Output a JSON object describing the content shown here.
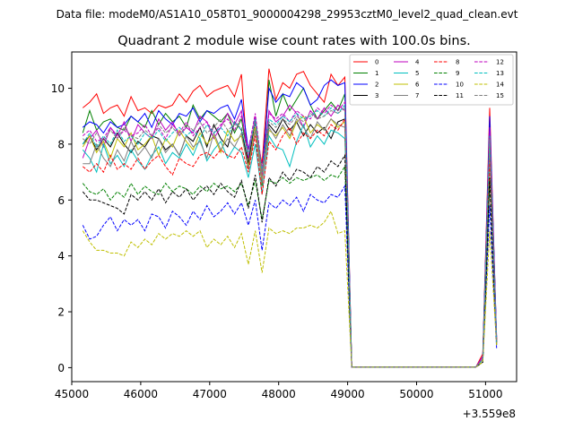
{
  "suptitle": "Data file: modeM0/AS1A10_058T01_9000004298_29953cztM0_level2_quad_clean.evt",
  "chart_data": {
    "type": "line",
    "title": "Quadrant 2 module wise count rates with 100.0s bins.",
    "xlabel": "",
    "ylabel": "",
    "x_offset_label": "+3.559e8",
    "xlim": [
      45000,
      51450
    ],
    "ylim": [
      -0.5,
      11.3
    ],
    "xticks": [
      45000,
      46000,
      47000,
      48000,
      49000,
      50000,
      51000
    ],
    "yticks": [
      0,
      2,
      4,
      6,
      8,
      10
    ],
    "legend": {
      "placement": "top-right",
      "columns": 4
    },
    "bin_note": "x = 45160 + 100*i (offset seconds), 61 bins",
    "series": [
      {
        "name": "0",
        "color": "#ff0000",
        "dash": "solid",
        "values": [
          9.3,
          9.5,
          9.8,
          9.1,
          9.3,
          9.4,
          9.0,
          9.7,
          9.2,
          9.3,
          9.1,
          9.4,
          9.3,
          9.4,
          9.8,
          9.5,
          9.9,
          10.1,
          9.7,
          9.9,
          10.0,
          10.1,
          9.7,
          10.5,
          7.1,
          8.5,
          7.3,
          10.7,
          9.6,
          10.2,
          10.0,
          10.5,
          10.6,
          10.1,
          9.8,
          9.5,
          10.5,
          10.1,
          10.4,
          0.02,
          0.02,
          0.02,
          0.02,
          0.02,
          0.02,
          0.02,
          0.02,
          0.02,
          0.02,
          0.02,
          0.02,
          0.02,
          0.02,
          0.02,
          0.02,
          0.02,
          0.02,
          0.02,
          0.5,
          9.3,
          1.0
        ]
      },
      {
        "name": "1",
        "color": "#008000",
        "dash": "solid",
        "values": [
          8.4,
          9.2,
          8.5,
          8.8,
          8.9,
          8.6,
          8.5,
          9.0,
          8.8,
          8.6,
          9.2,
          8.7,
          9.1,
          8.8,
          9.0,
          8.6,
          9.4,
          8.9,
          9.2,
          9.0,
          8.8,
          9.1,
          8.4,
          8.9,
          7.5,
          8.8,
          6.5,
          10.3,
          9.0,
          9.8,
          9.2,
          9.6,
          10.0,
          9.4,
          8.9,
          9.2,
          9.5,
          9.2,
          9.8,
          0.02,
          0.02,
          0.02,
          0.02,
          0.02,
          0.02,
          0.02,
          0.02,
          0.02,
          0.02,
          0.02,
          0.02,
          0.02,
          0.02,
          0.02,
          0.02,
          0.02,
          0.02,
          0.02,
          0.4,
          8.8,
          1.0
        ]
      },
      {
        "name": "2",
        "color": "#0000ff",
        "dash": "solid",
        "values": [
          8.6,
          8.8,
          8.7,
          8.4,
          8.8,
          8.6,
          8.7,
          9.0,
          8.8,
          9.1,
          8.6,
          9.2,
          8.9,
          8.7,
          9.1,
          9.0,
          9.3,
          8.8,
          9.2,
          9.1,
          9.3,
          9.4,
          8.9,
          9.6,
          7.8,
          8.8,
          7.0,
          10.0,
          9.5,
          9.8,
          9.7,
          10.2,
          10.0,
          9.4,
          9.6,
          10.1,
          10.3,
          10.1,
          10.2,
          0.02,
          0.02,
          0.02,
          0.02,
          0.02,
          0.02,
          0.02,
          0.02,
          0.02,
          0.02,
          0.02,
          0.02,
          0.02,
          0.02,
          0.02,
          0.02,
          0.02,
          0.02,
          0.02,
          0.4,
          9.0,
          1.1
        ]
      },
      {
        "name": "3",
        "color": "#000000",
        "dash": "solid",
        "values": [
          8.0,
          8.3,
          7.8,
          8.2,
          7.9,
          8.4,
          8.0,
          7.7,
          8.1,
          7.9,
          8.3,
          8.2,
          7.8,
          8.0,
          7.6,
          8.3,
          8.1,
          8.6,
          7.9,
          8.7,
          8.2,
          7.9,
          8.8,
          8.5,
          7.3,
          8.9,
          7.0,
          8.7,
          8.4,
          8.9,
          8.5,
          8.8,
          8.3,
          8.7,
          8.4,
          8.6,
          8.2,
          8.8,
          8.9,
          0.02,
          0.02,
          0.02,
          0.02,
          0.02,
          0.02,
          0.02,
          0.02,
          0.02,
          0.02,
          0.02,
          0.02,
          0.02,
          0.02,
          0.02,
          0.02,
          0.02,
          0.02,
          0.02,
          0.3,
          7.8,
          0.9
        ]
      },
      {
        "name": "4",
        "color": "#bf00bf",
        "dash": "solid",
        "values": [
          7.5,
          8.2,
          8.5,
          7.9,
          8.6,
          8.3,
          8.8,
          8.1,
          8.7,
          8.4,
          8.2,
          8.9,
          8.5,
          8.8,
          8.3,
          8.6,
          8.4,
          9.0,
          8.8,
          8.2,
          8.6,
          9.1,
          8.7,
          9.2,
          7.5,
          9.0,
          6.8,
          9.2,
          8.8,
          9.0,
          9.4,
          9.1,
          8.6,
          9.2,
          8.9,
          9.3,
          9.0,
          9.4,
          9.2,
          0.02,
          0.02,
          0.02,
          0.02,
          0.02,
          0.02,
          0.02,
          0.02,
          0.02,
          0.02,
          0.02,
          0.02,
          0.02,
          0.02,
          0.02,
          0.02,
          0.02,
          0.02,
          0.02,
          0.4,
          8.6,
          1.0
        ]
      },
      {
        "name": "5",
        "color": "#00bfbf",
        "dash": "solid",
        "values": [
          7.8,
          7.5,
          7.0,
          8.0,
          7.3,
          7.6,
          7.2,
          7.8,
          7.4,
          7.1,
          7.6,
          7.9,
          7.3,
          7.7,
          7.5,
          8.0,
          7.6,
          8.2,
          7.4,
          7.8,
          8.1,
          7.5,
          7.9,
          7.7,
          6.8,
          8.0,
          6.2,
          8.3,
          7.9,
          7.8,
          7.2,
          8.1,
          8.7,
          7.9,
          8.3,
          8.0,
          8.5,
          8.4,
          8.2,
          0.02,
          0.02,
          0.02,
          0.02,
          0.02,
          0.02,
          0.02,
          0.02,
          0.02,
          0.02,
          0.02,
          0.02,
          0.02,
          0.02,
          0.02,
          0.02,
          0.02,
          0.02,
          0.02,
          0.3,
          7.6,
          0.9
        ]
      },
      {
        "name": "6",
        "color": "#bfbf00",
        "dash": "solid",
        "values": [
          7.9,
          8.3,
          7.7,
          8.1,
          7.5,
          8.2,
          7.9,
          8.4,
          7.8,
          8.0,
          8.3,
          7.6,
          8.2,
          7.9,
          8.5,
          8.1,
          7.8,
          8.4,
          8.0,
          8.3,
          7.7,
          8.5,
          8.1,
          8.3,
          7.2,
          8.6,
          6.7,
          8.5,
          8.3,
          8.6,
          8.2,
          8.8,
          9.0,
          8.4,
          8.7,
          8.5,
          8.9,
          8.6,
          8.8,
          0.02,
          0.02,
          0.02,
          0.02,
          0.02,
          0.02,
          0.02,
          0.02,
          0.02,
          0.02,
          0.02,
          0.02,
          0.02,
          0.02,
          0.02,
          0.02,
          0.02,
          0.02,
          0.02,
          0.3,
          7.9,
          0.9
        ]
      },
      {
        "name": "7",
        "color": "#808080",
        "dash": "solid",
        "values": [
          7.3,
          7.3,
          8.0,
          7.5,
          7.2,
          7.8,
          7.4,
          8.1,
          7.6,
          7.9,
          7.5,
          8.2,
          7.7,
          8.0,
          7.6,
          8.3,
          7.9,
          8.1,
          7.5,
          8.4,
          7.8,
          8.2,
          7.9,
          8.4,
          7.1,
          8.5,
          6.6,
          8.6,
          8.2,
          8.7,
          8.3,
          8.9,
          8.6,
          8.2,
          8.8,
          8.5,
          8.9,
          8.7,
          8.6,
          0.02,
          0.02,
          0.02,
          0.02,
          0.02,
          0.02,
          0.02,
          0.02,
          0.02,
          0.02,
          0.02,
          0.02,
          0.02,
          0.02,
          0.02,
          0.02,
          0.02,
          0.02,
          0.02,
          0.3,
          7.7,
          0.9
        ]
      },
      {
        "name": "8",
        "color": "#ff0000",
        "dash": "dashed",
        "values": [
          7.2,
          7.0,
          7.3,
          7.0,
          7.6,
          7.1,
          7.3,
          7.1,
          7.5,
          7.1,
          7.4,
          7.6,
          7.2,
          6.9,
          7.5,
          7.3,
          7.2,
          7.6,
          7.7,
          7.5,
          7.8,
          7.6,
          7.5,
          7.9,
          7.0,
          8.3,
          6.2,
          8.1,
          7.8,
          8.3,
          8.6,
          8.0,
          8.4,
          8.2,
          8.5,
          8.3,
          8.7,
          8.5,
          8.9,
          0.02,
          0.02,
          0.02,
          0.02,
          0.02,
          0.02,
          0.02,
          0.02,
          0.02,
          0.02,
          0.02,
          0.02,
          0.02,
          0.02,
          0.02,
          0.02,
          0.02,
          0.02,
          0.02,
          0.3,
          7.5,
          0.9
        ]
      },
      {
        "name": "9",
        "color": "#008000",
        "dash": "dashed",
        "values": [
          6.6,
          6.3,
          6.2,
          6.4,
          6.0,
          6.3,
          6.1,
          6.6,
          6.2,
          6.5,
          6.3,
          6.2,
          6.6,
          6.3,
          6.5,
          6.4,
          6.2,
          6.5,
          6.3,
          6.6,
          6.4,
          6.5,
          6.3,
          6.6,
          5.8,
          6.7,
          5.3,
          6.7,
          6.6,
          6.8,
          6.6,
          6.8,
          6.7,
          6.8,
          6.9,
          6.7,
          6.9,
          6.8,
          7.2,
          0.02,
          0.02,
          0.02,
          0.02,
          0.02,
          0.02,
          0.02,
          0.02,
          0.02,
          0.02,
          0.02,
          0.02,
          0.02,
          0.02,
          0.02,
          0.02,
          0.02,
          0.02,
          0.02,
          0.2,
          6.6,
          0.8
        ]
      },
      {
        "name": "10",
        "color": "#0000ff",
        "dash": "dashed",
        "values": [
          5.1,
          4.6,
          4.7,
          5.1,
          5.4,
          4.9,
          5.3,
          5.1,
          5.3,
          4.9,
          5.5,
          5.4,
          5.0,
          5.6,
          5.4,
          5.1,
          5.6,
          5.3,
          5.8,
          5.4,
          5.6,
          5.9,
          5.5,
          5.9,
          5.1,
          6.0,
          4.2,
          5.9,
          5.7,
          6.0,
          5.8,
          6.1,
          5.6,
          6.2,
          6.0,
          5.9,
          6.2,
          6.1,
          6.5,
          0.02,
          0.02,
          0.02,
          0.02,
          0.02,
          0.02,
          0.02,
          0.02,
          0.02,
          0.02,
          0.02,
          0.02,
          0.02,
          0.02,
          0.02,
          0.02,
          0.02,
          0.02,
          0.02,
          0.2,
          5.8,
          0.7
        ]
      },
      {
        "name": "11",
        "color": "#000000",
        "dash": "dashed",
        "values": [
          6.3,
          6.0,
          6.0,
          5.9,
          5.8,
          5.7,
          5.5,
          6.2,
          6.0,
          6.3,
          6.0,
          6.4,
          5.9,
          6.3,
          6.1,
          6.4,
          6.0,
          6.3,
          6.5,
          6.2,
          6.6,
          6.3,
          6.1,
          6.7,
          5.7,
          6.9,
          5.2,
          6.8,
          6.5,
          7.0,
          6.7,
          7.1,
          7.0,
          6.8,
          7.2,
          7.0,
          7.4,
          7.2,
          7.6,
          0.02,
          0.02,
          0.02,
          0.02,
          0.02,
          0.02,
          0.02,
          0.02,
          0.02,
          0.02,
          0.02,
          0.02,
          0.02,
          0.02,
          0.02,
          0.02,
          0.02,
          0.02,
          0.02,
          0.2,
          6.8,
          0.8
        ]
      },
      {
        "name": "12",
        "color": "#bf00bf",
        "dash": "dashed",
        "values": [
          8.3,
          8.5,
          8.1,
          8.2,
          8.6,
          8.2,
          8.5,
          8.3,
          8.4,
          8.7,
          8.3,
          8.6,
          8.2,
          8.7,
          8.4,
          8.8,
          8.3,
          8.6,
          8.8,
          8.4,
          8.7,
          8.9,
          8.5,
          9.0,
          7.8,
          9.1,
          7.1,
          9.1,
          8.9,
          9.1,
          8.8,
          9.2,
          9.0,
          8.9,
          9.3,
          9.1,
          9.4,
          9.2,
          9.5,
          0.02,
          0.02,
          0.02,
          0.02,
          0.02,
          0.02,
          0.02,
          0.02,
          0.02,
          0.02,
          0.02,
          0.02,
          0.02,
          0.02,
          0.02,
          0.02,
          0.02,
          0.02,
          0.02,
          0.4,
          8.5,
          1.0
        ]
      },
      {
        "name": "13",
        "color": "#00bfbf",
        "dash": "dashed",
        "values": [
          8.0,
          8.4,
          7.9,
          8.3,
          8.0,
          8.5,
          8.1,
          8.3,
          8.0,
          8.4,
          8.2,
          8.5,
          8.1,
          8.4,
          8.6,
          8.3,
          8.5,
          8.2,
          8.7,
          8.4,
          8.6,
          8.3,
          8.8,
          8.5,
          7.6,
          8.9,
          7.0,
          8.9,
          8.7,
          9.0,
          8.8,
          9.1,
          8.9,
          9.0,
          9.2,
          9.0,
          9.3,
          9.1,
          9.4,
          0.02,
          0.02,
          0.02,
          0.02,
          0.02,
          0.02,
          0.02,
          0.02,
          0.02,
          0.02,
          0.02,
          0.02,
          0.02,
          0.02,
          0.02,
          0.02,
          0.02,
          0.02,
          0.02,
          0.3,
          8.3,
          0.9
        ]
      },
      {
        "name": "14",
        "color": "#bfbf00",
        "dash": "dashed",
        "values": [
          4.9,
          4.5,
          4.2,
          4.2,
          4.1,
          4.1,
          4.0,
          4.5,
          4.3,
          4.6,
          4.4,
          4.8,
          4.6,
          4.8,
          4.7,
          4.9,
          4.7,
          4.9,
          4.3,
          4.6,
          4.4,
          4.7,
          4.3,
          4.8,
          3.7,
          4.9,
          3.4,
          5.0,
          4.8,
          4.9,
          4.8,
          5.0,
          5.0,
          5.1,
          5.0,
          5.2,
          5.6,
          4.8,
          4.9,
          0.02,
          0.02,
          0.02,
          0.02,
          0.02,
          0.02,
          0.02,
          0.02,
          0.02,
          0.02,
          0.02,
          0.02,
          0.02,
          0.02,
          0.02,
          0.02,
          0.02,
          0.02,
          0.02,
          0.2,
          4.9,
          0.8
        ]
      },
      {
        "name": "15",
        "color": "#808080",
        "dash": "dashed",
        "values": [
          8.2,
          8.0,
          8.4,
          8.1,
          8.5,
          8.2,
          8.6,
          8.3,
          8.2,
          8.5,
          8.3,
          8.7,
          8.4,
          8.6,
          8.3,
          8.7,
          8.5,
          8.8,
          8.4,
          8.6,
          8.9,
          8.5,
          8.7,
          8.6,
          7.7,
          8.8,
          7.0,
          8.8,
          8.6,
          8.9,
          8.7,
          9.0,
          8.8,
          9.1,
          8.9,
          9.0,
          9.2,
          9.1,
          9.3,
          0.02,
          0.02,
          0.02,
          0.02,
          0.02,
          0.02,
          0.02,
          0.02,
          0.02,
          0.02,
          0.02,
          0.02,
          0.02,
          0.02,
          0.02,
          0.02,
          0.02,
          0.02,
          0.02,
          0.3,
          8.2,
          0.9
        ]
      }
    ]
  }
}
